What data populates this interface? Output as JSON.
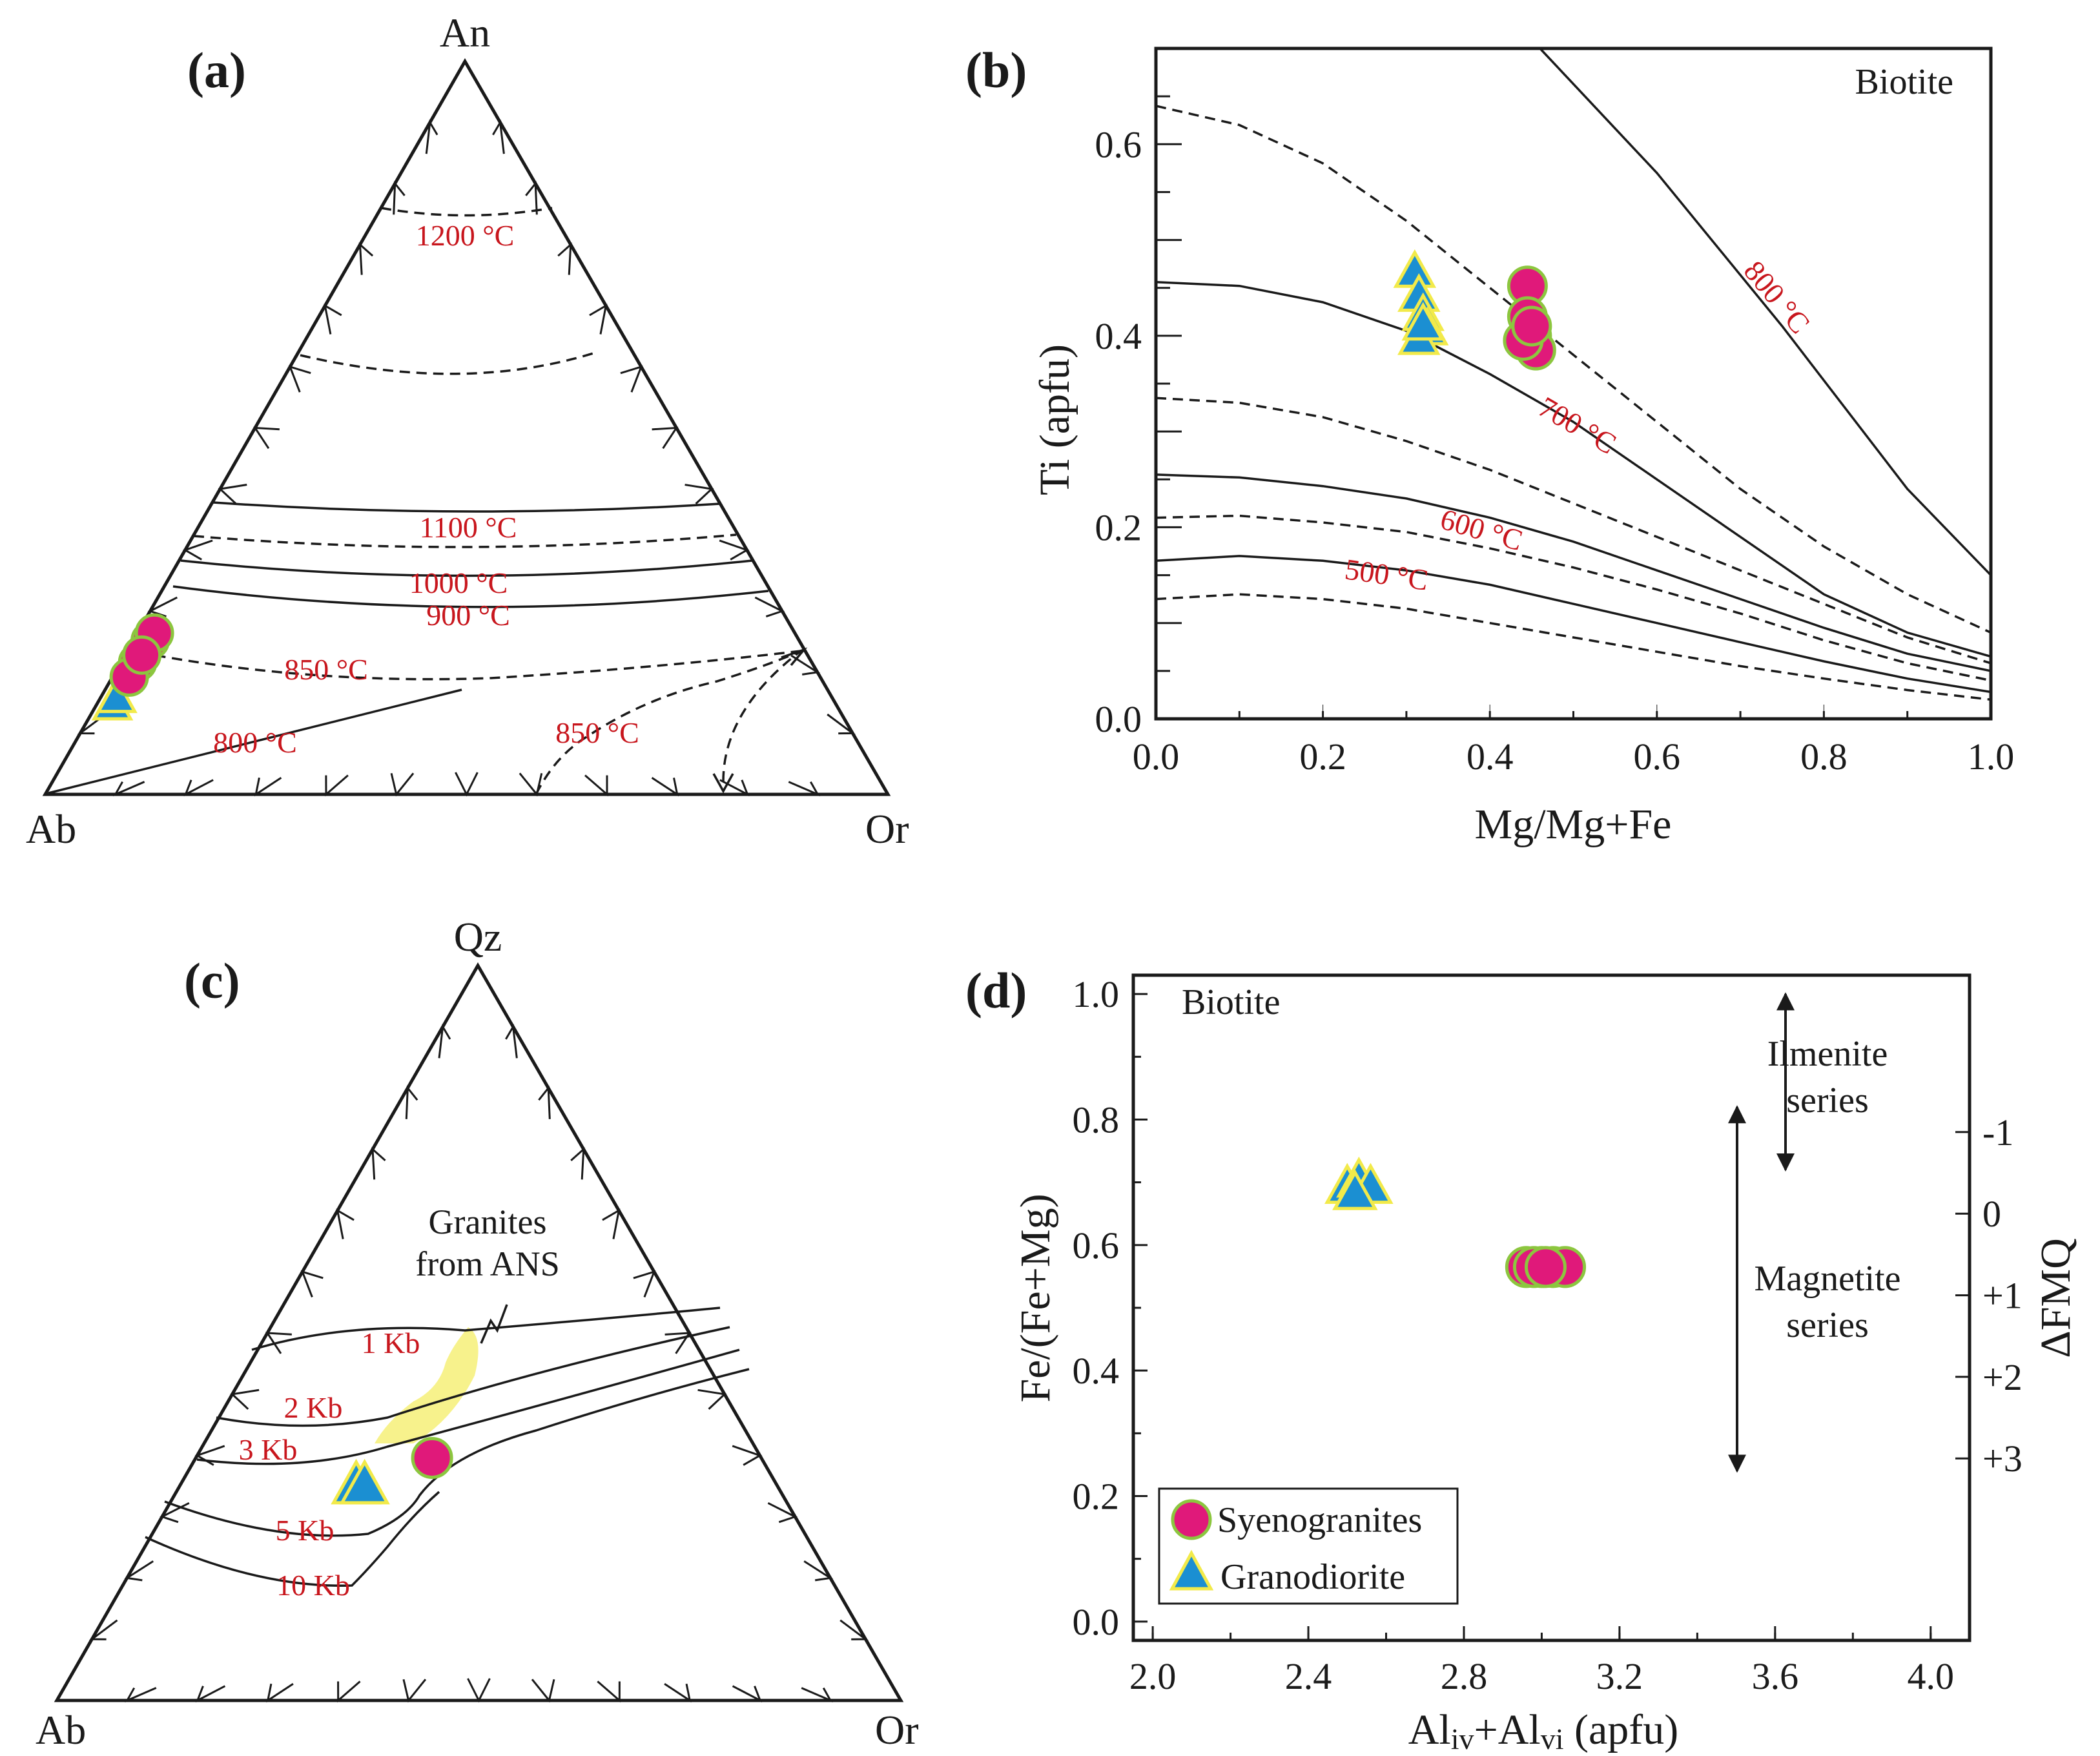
{
  "colors": {
    "syenogranite_fill": "#e0197a",
    "syenogranite_edge": "#8cc63f",
    "granodiorite_fill": "#1b8fd2",
    "granodiorite_edge": "#f2ea4a",
    "isotherm_label": "#c8161d",
    "ans_field": "#f7f28c"
  },
  "legend": {
    "syenogranites": "Syenogranites",
    "granodiorite": "Granodiorite"
  },
  "chart_data": [
    {
      "panel": "(a)",
      "type": "scatter",
      "subtype": "ternary",
      "vertices": {
        "top": "An",
        "left": "Ab",
        "right": "Or"
      },
      "isotherm_labels": [
        "1200 °C",
        "1100 °C",
        "1000 °C",
        "900 °C",
        "850 °C",
        "800 °C",
        "850 °C"
      ],
      "series": [
        {
          "name": "Syenogranites",
          "marker": "circle",
          "points": [
            {
              "An": 0.21,
              "Ab": 0.77,
              "Or": 0.02
            },
            {
              "An": 0.22,
              "Ab": 0.76,
              "Or": 0.02
            },
            {
              "An": 0.18,
              "Ab": 0.8,
              "Or": 0.02
            },
            {
              "An": 0.16,
              "Ab": 0.82,
              "Or": 0.02
            },
            {
              "An": 0.19,
              "Ab": 0.79,
              "Or": 0.02
            }
          ]
        },
        {
          "name": "Granodiorite",
          "marker": "triangle",
          "points": [
            {
              "An": 0.12,
              "Ab": 0.86,
              "Or": 0.02
            },
            {
              "An": 0.13,
              "Ab": 0.85,
              "Or": 0.02
            }
          ]
        }
      ]
    },
    {
      "panel": "(b)",
      "type": "scatter",
      "title": "Biotite",
      "xlabel": "Mg/Mg+Fe",
      "ylabel": "Ti (apfu)",
      "xlim": [
        0.0,
        1.0
      ],
      "ylim": [
        0.0,
        0.7
      ],
      "xticks": [
        "0.0",
        "0.2",
        "0.4",
        "0.6",
        "0.8",
        "1.0"
      ],
      "yticks": [
        "0.0",
        "0.2",
        "0.4",
        "0.6"
      ],
      "isotherm_labels": [
        "800 °C",
        "700 °C",
        "600 °C",
        "500 °C"
      ],
      "isotherms": [
        {
          "label": "800 °C",
          "x": [
            0.46,
            0.6,
            0.75,
            0.9,
            1.0
          ],
          "y": [
            0.7,
            0.57,
            0.41,
            0.24,
            0.15
          ]
        },
        {
          "label": "700 °C",
          "x": [
            0.0,
            0.1,
            0.2,
            0.3,
            0.4,
            0.5,
            0.6,
            0.7,
            0.8,
            0.9,
            1.0
          ],
          "y": [
            0.456,
            0.452,
            0.435,
            0.405,
            0.36,
            0.31,
            0.25,
            0.19,
            0.13,
            0.09,
            0.065
          ]
        },
        {
          "label": "600 °C",
          "x": [
            0.0,
            0.1,
            0.2,
            0.3,
            0.4,
            0.5,
            0.6,
            0.7,
            0.8,
            0.9,
            1.0
          ],
          "y": [
            0.255,
            0.252,
            0.243,
            0.23,
            0.21,
            0.185,
            0.155,
            0.125,
            0.095,
            0.068,
            0.05
          ]
        },
        {
          "label": "500 °C",
          "x": [
            0.0,
            0.1,
            0.2,
            0.3,
            0.4,
            0.5,
            0.6,
            0.7,
            0.8,
            0.9,
            1.0
          ],
          "y": [
            0.165,
            0.17,
            0.165,
            0.155,
            0.14,
            0.12,
            0.1,
            0.08,
            0.06,
            0.042,
            0.028
          ]
        }
      ],
      "dashed_curves": [
        {
          "x": [
            0.0,
            0.1,
            0.2,
            0.3,
            0.4,
            0.5,
            0.6,
            0.7,
            0.8,
            0.9,
            1.0
          ],
          "y": [
            0.64,
            0.62,
            0.58,
            0.52,
            0.45,
            0.38,
            0.31,
            0.24,
            0.18,
            0.13,
            0.09
          ]
        },
        {
          "x": [
            0.0,
            0.1,
            0.2,
            0.3,
            0.4,
            0.5,
            0.6,
            0.7,
            0.8,
            0.9,
            1.0
          ],
          "y": [
            0.335,
            0.33,
            0.315,
            0.29,
            0.26,
            0.225,
            0.19,
            0.155,
            0.12,
            0.085,
            0.058
          ]
        },
        {
          "x": [
            0.0,
            0.1,
            0.2,
            0.3,
            0.4,
            0.5,
            0.6,
            0.7,
            0.8,
            0.9,
            1.0
          ],
          "y": [
            0.21,
            0.212,
            0.205,
            0.195,
            0.178,
            0.158,
            0.135,
            0.11,
            0.082,
            0.058,
            0.04
          ]
        },
        {
          "x": [
            0.0,
            0.1,
            0.2,
            0.3,
            0.4,
            0.5,
            0.6,
            0.7,
            0.8,
            0.9,
            1.0
          ],
          "y": [
            0.125,
            0.13,
            0.125,
            0.115,
            0.1,
            0.085,
            0.07,
            0.055,
            0.042,
            0.03,
            0.02
          ]
        }
      ],
      "series": [
        {
          "name": "Syenogranites",
          "marker": "circle",
          "x": [
            0.445,
            0.445,
            0.45,
            0.455,
            0.44,
            0.45
          ],
          "y": [
            0.452,
            0.42,
            0.4,
            0.385,
            0.395,
            0.41
          ]
        },
        {
          "name": "Granodiorite",
          "marker": "triangle",
          "x": [
            0.31,
            0.315,
            0.32,
            0.325,
            0.315,
            0.32
          ],
          "y": [
            0.465,
            0.44,
            0.42,
            0.405,
            0.395,
            0.41
          ]
        }
      ]
    },
    {
      "panel": "(c)",
      "type": "scatter",
      "subtype": "ternary",
      "vertices": {
        "top": "Qz",
        "left": "Ab",
        "right": "Or"
      },
      "annotation": "Granites\nfrom ANS",
      "annotation_lines": [
        "Granites",
        "from ANS"
      ],
      "pressure_labels": [
        "1 Kb",
        "2 Kb",
        "3 Kb",
        "5 Kb",
        "10 Kb"
      ],
      "series": [
        {
          "name": "Syenogranites",
          "marker": "circle",
          "points": [
            {
              "Qz": 0.33,
              "Ab": 0.39,
              "Or": 0.28
            }
          ]
        },
        {
          "name": "Granodiorite",
          "marker": "triangle",
          "points": [
            {
              "Qz": 0.29,
              "Ab": 0.5,
              "Or": 0.21
            },
            {
              "Qz": 0.29,
              "Ab": 0.49,
              "Or": 0.22
            }
          ]
        }
      ]
    },
    {
      "panel": "(d)",
      "type": "scatter",
      "title": "Biotite",
      "xlabel": "Al",
      "xlabel_sub1": "iv",
      "xlabel_mid": "+Al",
      "xlabel_sub2": "vi",
      "xlabel_tail": " (apfu)",
      "ylabel": "Fe/(Fe+Mg)",
      "y2label": "ΔFMQ",
      "xlim": [
        1.95,
        4.1
      ],
      "ylim": [
        -0.03,
        1.03
      ],
      "xticks": [
        "2.0",
        "2.4",
        "2.8",
        "3.2",
        "3.6",
        "4.0"
      ],
      "yticks": [
        "0.0",
        "0.2",
        "0.4",
        "0.6",
        "0.8",
        "1.0"
      ],
      "y2ticks": [
        "-1",
        "0",
        "+1",
        "+2",
        "+3"
      ],
      "y2tick_positions": [
        0.78,
        0.65,
        0.52,
        0.39,
        0.26
      ],
      "series_labels": [
        "Ilmenite",
        "series",
        "Magnetite",
        "series"
      ],
      "ilmenite_range": [
        0.72,
        1.0
      ],
      "magnetite_range": [
        0.24,
        0.82
      ],
      "series": [
        {
          "name": "Syenogranites",
          "marker": "circle",
          "x": [
            2.96,
            3.0,
            3.03,
            3.06,
            2.98,
            3.01
          ],
          "y": [
            0.565,
            0.565,
            0.565,
            0.565,
            0.565,
            0.565
          ]
        },
        {
          "name": "Granodiorite",
          "marker": "triangle",
          "x": [
            2.5,
            2.53,
            2.56,
            2.52
          ],
          "y": [
            0.69,
            0.7,
            0.69,
            0.68
          ]
        }
      ]
    }
  ]
}
